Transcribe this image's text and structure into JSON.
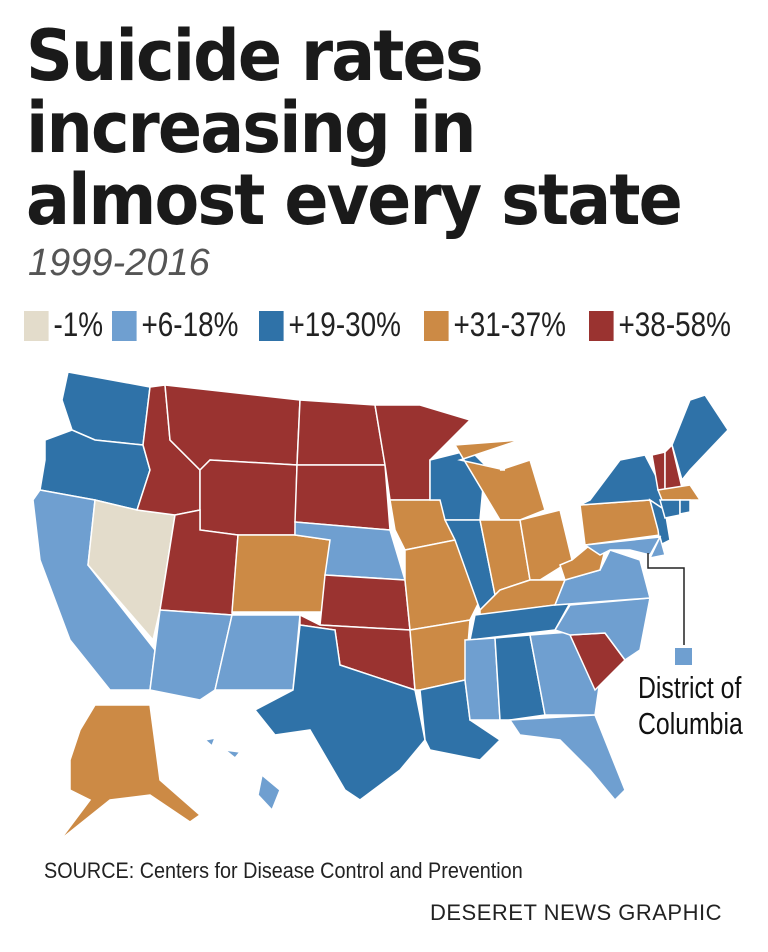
{
  "title": [
    "Suicide rates",
    "increasing in",
    "almost every state"
  ],
  "subtitle": "1999-2016",
  "legend": [
    {
      "label": "-1%",
      "color": "#e3dccb"
    },
    {
      "label": "+6-18%",
      "color": "#6f9fd0"
    },
    {
      "label": "+19-30%",
      "color": "#2f72a8"
    },
    {
      "label": "+31-37%",
      "color": "#cc8a45"
    },
    {
      "label": "+38-58%",
      "color": "#9a3330"
    }
  ],
  "states": {
    "WA": 2,
    "OR": 2,
    "CA": 1,
    "NV": 0,
    "ID": 4,
    "MT": 4,
    "WY": 4,
    "UT": 4,
    "CO": 3,
    "AZ": 1,
    "NM": 1,
    "ND": 4,
    "SD": 4,
    "NE": 1,
    "KS": 4,
    "OK": 4,
    "TX": 2,
    "MN": 4,
    "IA": 3,
    "MO": 3,
    "AR": 3,
    "LA": 2,
    "WI": 2,
    "IL": 2,
    "MI": 3,
    "IN": 3,
    "OH": 3,
    "KY": 3,
    "TN": 2,
    "MS": 1,
    "AL": 2,
    "GA": 1,
    "FL": 1,
    "SC": 4,
    "NC": 1,
    "VA": 1,
    "WV": 3,
    "PA": 3,
    "NY": 2,
    "NJ": 2,
    "MD": 1,
    "DE": 1,
    "VT": 4,
    "NH": 4,
    "ME": 2,
    "MA": 3,
    "CT": 2,
    "RI": 2,
    "AK": 3,
    "HI": 1,
    "DC": 1
  },
  "dc_label": "District of Columbia",
  "source": "SOURCE: Centers for Disease Control and Prevention",
  "credit": "DESERET NEWS GRAPHIC"
}
